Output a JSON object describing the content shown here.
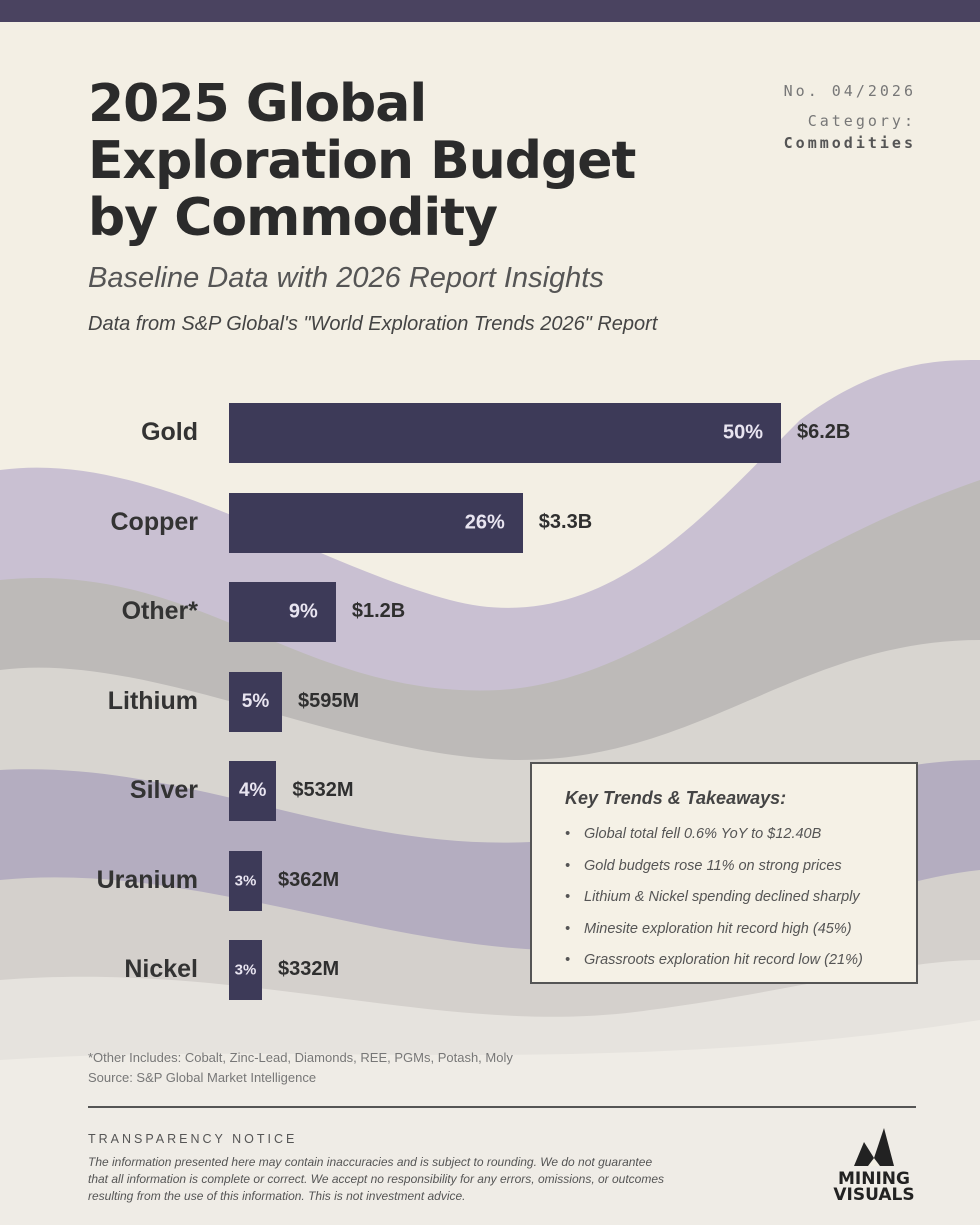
{
  "header": {
    "title_lines": [
      "2025 Global",
      "Exploration Budget",
      "by Commodity"
    ],
    "issue": "No. 04/2026",
    "category_label": "Category:",
    "category_value": "Commodities",
    "subtitle": "Baseline Data with 2026 Report Insights",
    "data_source": "Data from S&P Global's \"World Exploration Trends 2026\" Report"
  },
  "chart_data": {
    "type": "bar",
    "orientation": "horizontal",
    "categories": [
      "Gold",
      "Copper",
      "Other*",
      "Lithium",
      "Silver",
      "Uranium",
      "Nickel"
    ],
    "values": [
      6.2,
      3.3,
      1.2,
      0.595,
      0.532,
      0.362,
      0.332
    ],
    "unit": "USD billions",
    "value_labels": [
      "$6.2B",
      "$3.3B",
      "$1.2B",
      "$595M",
      "$532M",
      "$362M",
      "$332M"
    ],
    "percent_labels": [
      "50%",
      "26%",
      "9%",
      "5%",
      "4%",
      "3%",
      "3%"
    ],
    "bar_color": "#3d3a58"
  },
  "trends": {
    "title": "Key Trends & Takeaways:",
    "items": [
      "Global total fell 0.6% YoY to $12.40B",
      "Gold budgets rose 11% on strong prices",
      "Lithium & Nickel spending declined sharply",
      "Minesite exploration hit record high (45%)",
      "Grassroots exploration hit record low (21%)"
    ]
  },
  "footnotes": {
    "other": "*Other Includes: Cobalt, Zinc-Lead, Diamonds, REE, PGMs, Potash, Moly",
    "source": "Source: S&P Global Market Intelligence"
  },
  "notice": {
    "title": "TRANSPARENCY NOTICE",
    "text": "The information presented here may contain inaccuracies and is subject to rounding. We do not guarantee that all information is complete or correct. We accept no responsibility for any errors, omissions, or outcomes resulting from the use of this information. This is not investment advice."
  },
  "logo": {
    "lines": [
      "MINING",
      "VISUALS"
    ]
  }
}
